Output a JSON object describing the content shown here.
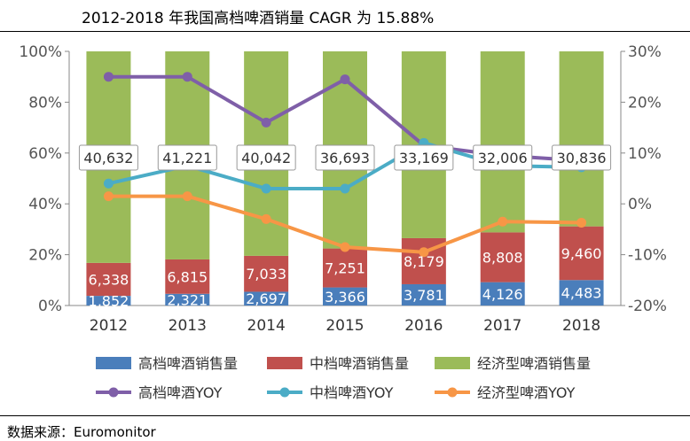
{
  "title": "2012-2018 年我国高档啤酒销量 CAGR 为 15.88%",
  "source": {
    "label": "数据来源：",
    "value": "Euromonitor"
  },
  "colors": {
    "high": "#4a7ebb",
    "mid": "#c0504d",
    "econ": "#9bbb59",
    "high_yoy": "#7f5fa8",
    "mid_yoy": "#4bacc6",
    "econ_yoy": "#f79646"
  },
  "chart_data": {
    "type": "bar",
    "stacked": "percent",
    "categories": [
      "2012",
      "2013",
      "2014",
      "2015",
      "2016",
      "2017",
      "2018"
    ],
    "series": [
      {
        "name": "高档啤酒销售量",
        "key": "high",
        "values": [
          1852,
          2321,
          2697,
          3366,
          3781,
          4126,
          4483
        ],
        "labels": [
          "1,852",
          "2,321",
          "2,697",
          "3,366",
          "3,781",
          "4,126",
          "4,483"
        ]
      },
      {
        "name": "中档啤酒销售量",
        "key": "mid",
        "values": [
          6338,
          6815,
          7033,
          7251,
          8179,
          8808,
          9460
        ],
        "labels": [
          "6,338",
          "6,815",
          "7,033",
          "7,251",
          "8,179",
          "8,808",
          "9,460"
        ]
      },
      {
        "name": "经济型啤酒销售量",
        "key": "econ",
        "values": [
          40632,
          41221,
          40042,
          36693,
          33169,
          32006,
          30836
        ],
        "labels": [
          "40,632",
          "41,221",
          "40,042",
          "36,693",
          "33,169",
          "32,006",
          "30,836"
        ]
      }
    ],
    "line_series": [
      {
        "name": "高档啤酒YOY",
        "key": "high_yoy",
        "values": [
          25,
          25,
          16,
          24.5,
          11.5,
          9.5,
          8.5
        ]
      },
      {
        "name": "中档啤酒YOY",
        "key": "mid_yoy",
        "values": [
          4,
          7.5,
          3,
          3,
          12,
          7.5,
          7.2
        ]
      },
      {
        "name": "经济型啤酒YOY",
        "key": "econ_yoy",
        "values": [
          1.5,
          1.5,
          -3,
          -8.5,
          -9.5,
          -3.5,
          -3.7
        ]
      }
    ],
    "y_left": {
      "min": 0,
      "max": 100,
      "ticks": [
        "0%",
        "20%",
        "40%",
        "60%",
        "80%",
        "100%"
      ]
    },
    "y_right": {
      "min": -20,
      "max": 30,
      "ticks": [
        "-20%",
        "-10%",
        "0%",
        "10%",
        "20%",
        "30%"
      ]
    },
    "legend": [
      "高档啤酒销售量",
      "中档啤酒销售量",
      "经济型啤酒销售量",
      "高档啤酒YOY",
      "中档啤酒YOY",
      "经济型啤酒YOY"
    ],
    "legend_position": "bottom"
  }
}
